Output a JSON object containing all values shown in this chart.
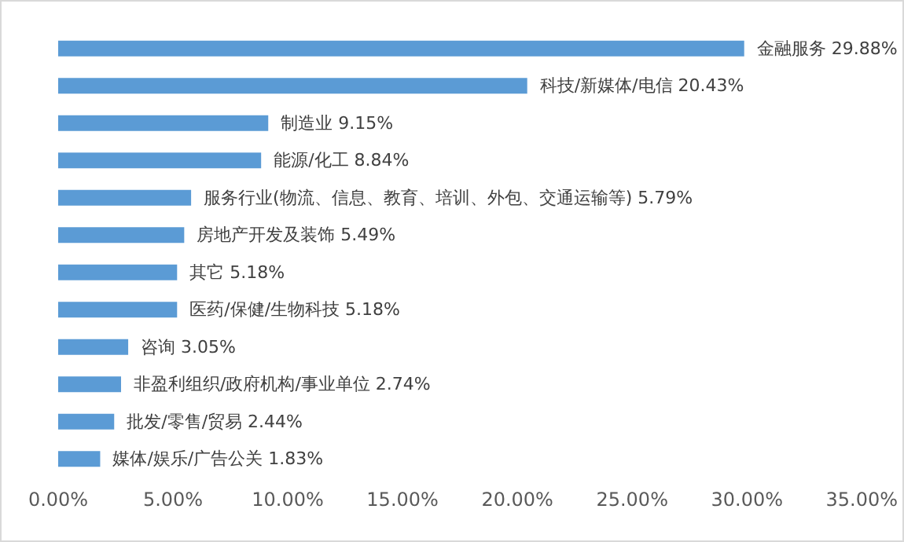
{
  "chart_data": {
    "type": "bar",
    "orientation": "horizontal",
    "tick_labels": "x",
    "grid": false,
    "categories": [
      "金融服务",
      "科技/新媒体/电信",
      "制造业",
      "能源/化工",
      "服务行业(物流、信息、教育、培训、外包、交通运输等)",
      "房地产开发及装饰",
      "其它",
      "医药/保健/生物科技",
      "咨询",
      "非盈利组织/政府机构/事业单位",
      "批发/零售/贸易",
      "媒体/娱乐/广告公关"
    ],
    "values": [
      29.88,
      20.43,
      9.15,
      8.84,
      5.79,
      5.49,
      5.18,
      5.18,
      3.05,
      2.74,
      2.44,
      1.83
    ],
    "value_labels": [
      "29.88%",
      "20.43%",
      "9.15%",
      "8.84%",
      "5.79%",
      "5.49%",
      "5.18%",
      "5.18%",
      "3.05%",
      "2.74%",
      "2.44%",
      "1.83%"
    ],
    "color": "#5b9bd5",
    "xlim": [
      0,
      35
    ],
    "xticks": [
      {
        "value": 0,
        "label": "0.00%"
      },
      {
        "value": 5,
        "label": "5.00%"
      },
      {
        "value": 10,
        "label": "10.00%"
      },
      {
        "value": 15,
        "label": "15.00%"
      },
      {
        "value": 20,
        "label": "20.00%"
      },
      {
        "value": 25,
        "label": "25.00%"
      },
      {
        "value": 30,
        "label": "30.00%"
      },
      {
        "value": 35,
        "label": "35.00%"
      }
    ]
  }
}
